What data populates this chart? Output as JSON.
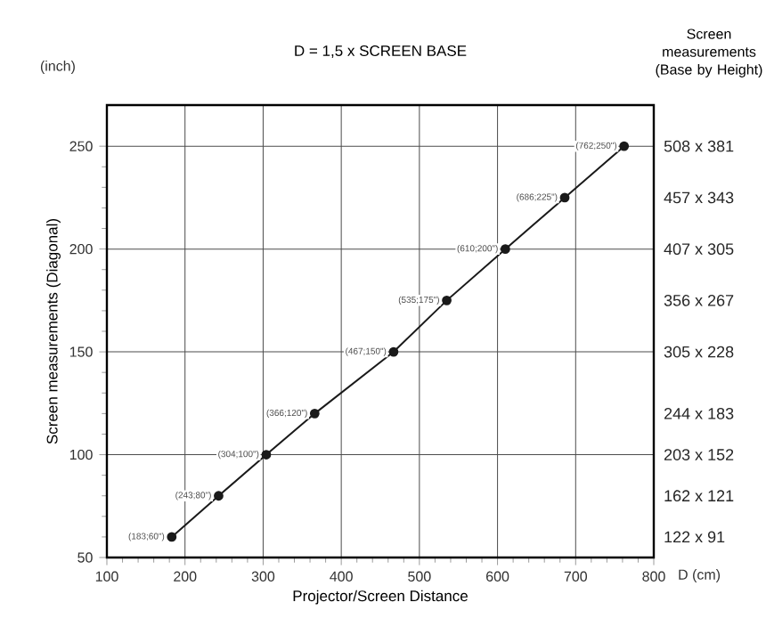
{
  "chart_data": {
    "type": "line",
    "title": "D = 1,5 x SCREEN BASE",
    "xlabel": "Projector/Screen Distance",
    "ylabel": "Screen measurements (Diagonal)",
    "y2label": "Screen measurements (Base by Height)",
    "annotations": [
      "(inch)",
      "D (cm)",
      "122 x 91",
      "162 x 121",
      "203 x 152",
      "244 x 183",
      "305 x 228",
      "356 x 267",
      "407 x 305",
      "457 x 343",
      "508 x 381"
    ],
    "x": [
      183,
      243,
      304,
      366,
      467,
      535,
      610,
      686,
      762
    ],
    "series": [
      {
        "color": "#1a1a1a",
        "values": [
          60,
          80,
          100,
          120,
          150,
          175,
          200,
          225,
          250
        ],
        "value_labels": [
          "(183;60\")",
          "(243;80\")",
          "(304;100\")",
          "(366;120\")",
          "(467;150\")",
          "(535;175\")",
          "(610;200\")",
          "(686;225\")",
          "(762;250\")"
        ]
      }
    ],
    "xlim": [
      100,
      800
    ],
    "xticks": [
      100,
      200,
      300,
      400,
      500,
      600,
      700,
      800
    ],
    "ylim": [
      50,
      270
    ],
    "yticks": [
      50,
      100,
      150,
      200,
      250
    ],
    "grid": true,
    "marker": "circle",
    "line_style": "solid"
  }
}
